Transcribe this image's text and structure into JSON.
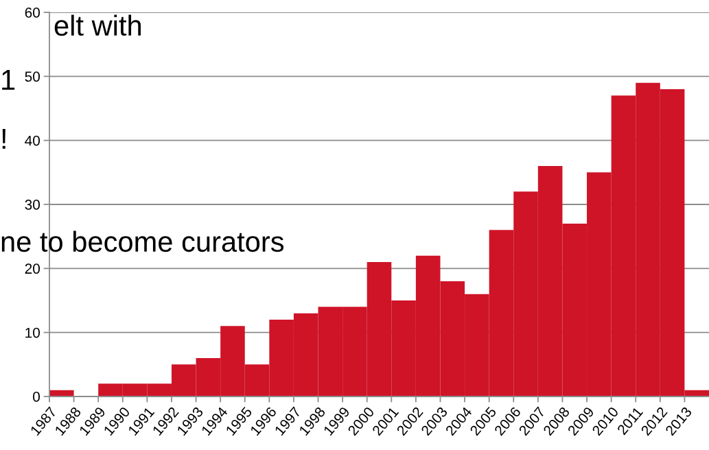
{
  "chart_data": {
    "type": "bar",
    "categories": [
      "1987",
      "1988",
      "1989",
      "1990",
      "1991",
      "1992",
      "1993",
      "1994",
      "1995",
      "1996",
      "1997",
      "1998",
      "1999",
      "2000",
      "2001",
      "2002",
      "2003",
      "2004",
      "2005",
      "2006",
      "2007",
      "2008",
      "2009",
      "2010",
      "2011",
      "2012",
      "2013"
    ],
    "values": [
      1,
      0,
      2,
      2,
      2,
      5,
      6,
      11,
      5,
      12,
      13,
      14,
      14,
      21,
      15,
      22,
      18,
      16,
      26,
      32,
      36,
      27,
      35,
      47,
      49,
      48,
      1
    ],
    "color": "#cf1428",
    "ylim": [
      0,
      60
    ],
    "yticks": [
      0,
      10,
      20,
      30,
      40,
      50,
      60
    ],
    "grid": "y",
    "annotations": [
      "elt with",
      "1",
      "!",
      "ne to become curators"
    ]
  }
}
